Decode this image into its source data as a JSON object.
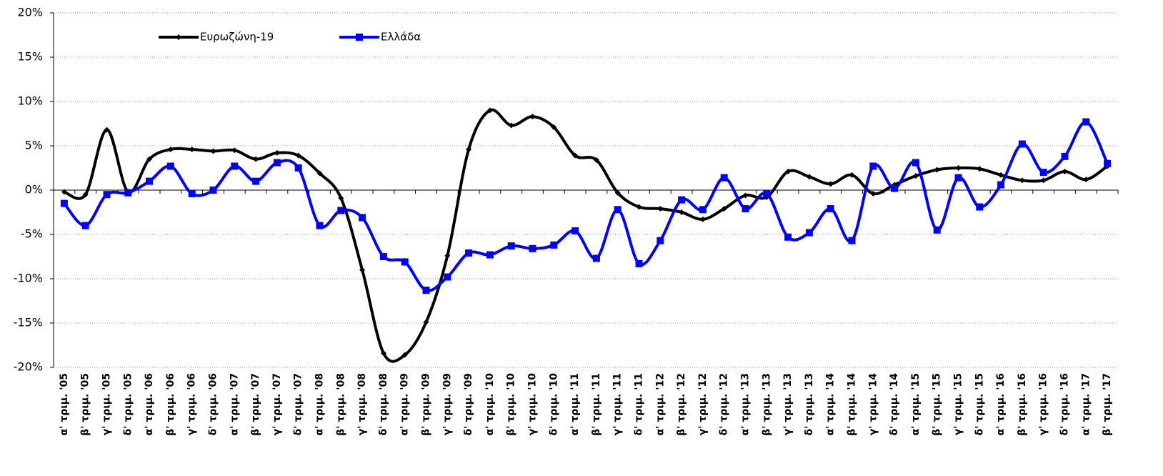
{
  "chart_data": {
    "type": "line",
    "categories": [
      "α' τριμ. '05",
      "β' τριμ. '05",
      "γ' τριμ. '05",
      "δ' τριμ. '05",
      "α' τριμ. '06",
      "β' τριμ. '06",
      "γ' τριμ. '06",
      "δ' τριμ. '06",
      "α' τριμ. '07",
      "β' τριμ. '07",
      "γ' τριμ. '07",
      "δ' τριμ. '07",
      "α' τριμ. '08",
      "β' τριμ. '08",
      "γ' τριμ. '08",
      "δ' τριμ. '08",
      "α' τριμ. '09",
      "β' τριμ. '09",
      "γ' τριμ. '09",
      "δ' τριμ. '09",
      "α' τριμ. '10",
      "β' τριμ. '10",
      "γ' τριμ. '10",
      "δ' τριμ. '10",
      "α' τριμ. '11",
      "β' τριμ. '11",
      "γ' τριμ. '11",
      "δ' τριμ. '11",
      "α' τριμ. '12",
      "β' τριμ. '12",
      "γ' τριμ. '12",
      "δ' τριμ. '12",
      "α' τριμ. '13",
      "β' τριμ. '13",
      "γ' τριμ. '13",
      "δ' τριμ. '13",
      "α' τριμ. '14",
      "β' τριμ. '14",
      "γ' τριμ. '14",
      "δ' τριμ. '14",
      "α' τριμ. '15",
      "β' τριμ. '15",
      "γ' τριμ. '15",
      "δ' τριμ. '15",
      "α' τριμ. '16",
      "β' τριμ. '16",
      "γ' τριμ. '16",
      "δ' τριμ. '16",
      "α' τριμ. '17",
      "β' τριμ. '17"
    ],
    "series": [
      {
        "name": "Ευρωζώνη-19",
        "color": "#000000",
        "marker": "diamond",
        "values": [
          -0.2,
          -0.5,
          6.8,
          -0.2,
          3.5,
          4.6,
          4.6,
          4.4,
          4.5,
          3.5,
          4.2,
          3.9,
          1.9,
          -0.9,
          -9.0,
          -18.4,
          -18.6,
          -14.9,
          -7.4,
          4.6,
          9.0,
          7.3,
          8.3,
          7.1,
          3.9,
          3.4,
          -0.3,
          -1.9,
          -2.1,
          -2.5,
          -3.3,
          -2.1,
          -0.6,
          -0.8,
          2.1,
          1.5,
          0.7,
          1.7,
          -0.4,
          0.6,
          1.6,
          2.3,
          2.5,
          2.4,
          1.7,
          1.1,
          1.1,
          2.1,
          1.2,
          2.7
        ]
      },
      {
        "name": "Ελλάδα",
        "color": "#0000ff",
        "marker": "square",
        "values": [
          -1.5,
          -4.0,
          -0.5,
          -0.3,
          1.0,
          2.7,
          -0.4,
          0.0,
          2.7,
          1.0,
          3.1,
          2.5,
          -4.0,
          -2.3,
          -3.1,
          -7.5,
          -8.1,
          -11.3,
          -9.8,
          -7.1,
          -7.3,
          -6.3,
          -6.6,
          -6.2,
          -4.6,
          -7.7,
          -2.2,
          -8.3,
          -5.7,
          -1.1,
          -2.2,
          1.4,
          -2.1,
          -0.4,
          -5.3,
          -4.8,
          -2.1,
          -5.7,
          2.7,
          0.2,
          3.1,
          -4.5,
          1.4,
          -1.9,
          0.6,
          5.2,
          2.0,
          3.8,
          7.7,
          3.0
        ]
      }
    ],
    "ylim": [
      -20,
      20
    ],
    "yticks": [
      {
        "value": -20,
        "label": "-20%"
      },
      {
        "value": -15,
        "label": "-15%"
      },
      {
        "value": -10,
        "label": "-10%"
      },
      {
        "value": -5,
        "label": "-5%"
      },
      {
        "value": 0,
        "label": "0%"
      },
      {
        "value": 5,
        "label": "5%"
      },
      {
        "value": 10,
        "label": "10%"
      },
      {
        "value": 15,
        "label": "15%"
      },
      {
        "value": 20,
        "label": "20%"
      }
    ],
    "grid": true,
    "smooth": true,
    "legend": "top-left"
  }
}
